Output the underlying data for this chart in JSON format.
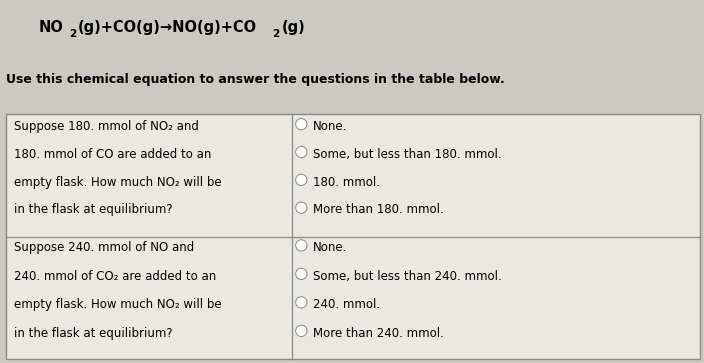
{
  "title_parts": [
    {
      "text": "NO",
      "style": "bold"
    },
    {
      "text": "2",
      "style": "sub"
    },
    {
      "text": "(g)+CO(g)→NO(g)+CO",
      "style": "bold"
    },
    {
      "text": "2",
      "style": "sub"
    },
    {
      "text": "(g)",
      "style": "bold"
    }
  ],
  "subtitle": "Use this chemical equation to answer the questions in the table below.",
  "background_color": "#ccc9c2",
  "table_bg": "#ebe8e1",
  "row1_question": [
    "Suppose 180. mmol of NO₂ and",
    "180. mmol of CO are added to an",
    "empty flask. How much NO₂ will be",
    "in the flask at equilibrium?"
  ],
  "row1_options": [
    "None.",
    "Some, but less than 180. mmol.",
    "180. mmol.",
    "More than 180. mmol."
  ],
  "row2_question": [
    "Suppose 240. mmol of NO and",
    "240. mmol of CO₂ are added to an",
    "empty flask. How much NO₂ will be",
    "in the flask at equilibrium?"
  ],
  "row2_options": [
    "None.",
    "Some, but less than 240. mmol.",
    "240. mmol.",
    "More than 240. mmol."
  ],
  "font_size": 8.5,
  "title_font_size": 10.5,
  "subtitle_font_size": 9.0
}
